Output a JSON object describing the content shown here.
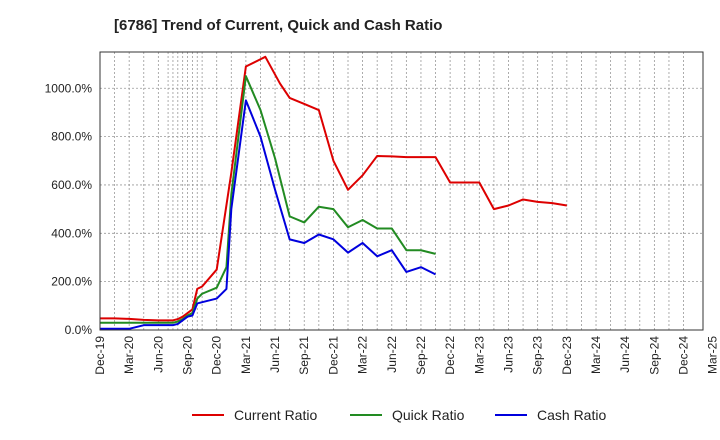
{
  "chart_data": {
    "type": "line",
    "title": "[6786]  Trend of Current, Quick and Cash Ratio",
    "xlabel": "",
    "ylabel": "",
    "ylim": [
      0,
      1150
    ],
    "yticks": [
      0,
      200,
      400,
      600,
      800,
      1000
    ],
    "ytick_labels": [
      "0.0%",
      "200.0%",
      "400.0%",
      "600.0%",
      "800.0%",
      "1000.0%"
    ],
    "x_ticks": [
      "Dec-19",
      "Mar-20",
      "Jun-20",
      "Sep-20",
      "Dec-20",
      "Mar-21",
      "Jun-21",
      "Sep-21",
      "Dec-21",
      "Mar-22",
      "Jun-22",
      "Sep-22",
      "Dec-22",
      "Mar-23",
      "Jun-23",
      "Sep-23",
      "Dec-23",
      "Mar-24",
      "Jun-24",
      "Sep-24",
      "Dec-24",
      "Mar-25"
    ],
    "x": [
      0,
      3,
      6,
      9,
      12,
      14,
      15,
      16,
      17,
      18,
      19,
      20,
      21,
      24,
      27,
      30,
      33,
      36,
      39,
      42,
      45,
      48,
      51,
      54,
      57,
      60,
      63,
      66,
      69,
      72,
      75,
      78,
      81,
      84,
      87,
      90,
      93,
      96,
      99,
      102,
      105,
      108,
      111,
      114,
      117,
      120
    ],
    "grid": true,
    "legend_position": "bottom",
    "series": [
      {
        "name": "Current Ratio",
        "color": "#dd0000",
        "points": [
          [
            0,
            48
          ],
          [
            3,
            48
          ],
          [
            6,
            46
          ],
          [
            9,
            42
          ],
          [
            12,
            40
          ],
          [
            14,
            40
          ],
          [
            15,
            40
          ],
          [
            16,
            45
          ],
          [
            17,
            55
          ],
          [
            18,
            70
          ],
          [
            19,
            85
          ],
          [
            20,
            170
          ],
          [
            21,
            180
          ],
          [
            24,
            250
          ],
          [
            27,
            650
          ],
          [
            30,
            1090
          ],
          [
            33,
            1120
          ],
          [
            34,
            1130
          ],
          [
            37,
            1020
          ],
          [
            39,
            960
          ],
          [
            42,
            935
          ],
          [
            45,
            910
          ],
          [
            48,
            700
          ],
          [
            51,
            580
          ],
          [
            54,
            640
          ],
          [
            57,
            720
          ],
          [
            60,
            718
          ],
          [
            63,
            715
          ],
          [
            66,
            715
          ],
          [
            69,
            715
          ],
          [
            72,
            610
          ],
          [
            75,
            610
          ],
          [
            78,
            610
          ],
          [
            81,
            500
          ],
          [
            84,
            515
          ],
          [
            87,
            540
          ],
          [
            90,
            530
          ],
          [
            93,
            525
          ],
          [
            96,
            515
          ]
        ]
      },
      {
        "name": "Quick Ratio",
        "color": "#228b22",
        "points": [
          [
            0,
            30
          ],
          [
            3,
            30
          ],
          [
            6,
            30
          ],
          [
            9,
            30
          ],
          [
            12,
            30
          ],
          [
            14,
            30
          ],
          [
            15,
            30
          ],
          [
            16,
            35
          ],
          [
            17,
            45
          ],
          [
            18,
            60
          ],
          [
            19,
            70
          ],
          [
            20,
            130
          ],
          [
            21,
            150
          ],
          [
            24,
            175
          ],
          [
            26,
            260
          ],
          [
            27,
            560
          ],
          [
            30,
            1050
          ],
          [
            33,
            910
          ],
          [
            36,
            710
          ],
          [
            39,
            470
          ],
          [
            42,
            445
          ],
          [
            45,
            510
          ],
          [
            48,
            500
          ],
          [
            51,
            425
          ],
          [
            54,
            455
          ],
          [
            57,
            420
          ],
          [
            60,
            420
          ],
          [
            63,
            330
          ],
          [
            66,
            330
          ],
          [
            69,
            315
          ]
        ]
      },
      {
        "name": "Cash Ratio",
        "color": "#0000dd",
        "points": [
          [
            0,
            5
          ],
          [
            3,
            5
          ],
          [
            6,
            5
          ],
          [
            9,
            20
          ],
          [
            12,
            20
          ],
          [
            14,
            20
          ],
          [
            15,
            20
          ],
          [
            16,
            25
          ],
          [
            17,
            40
          ],
          [
            18,
            55
          ],
          [
            19,
            60
          ],
          [
            20,
            110
          ],
          [
            21,
            115
          ],
          [
            24,
            130
          ],
          [
            26,
            170
          ],
          [
            27,
            500
          ],
          [
            30,
            950
          ],
          [
            33,
            800
          ],
          [
            36,
            580
          ],
          [
            39,
            375
          ],
          [
            42,
            360
          ],
          [
            45,
            395
          ],
          [
            48,
            375
          ],
          [
            51,
            320
          ],
          [
            54,
            360
          ],
          [
            57,
            305
          ],
          [
            60,
            330
          ],
          [
            63,
            240
          ],
          [
            66,
            260
          ],
          [
            69,
            230
          ]
        ]
      }
    ]
  }
}
